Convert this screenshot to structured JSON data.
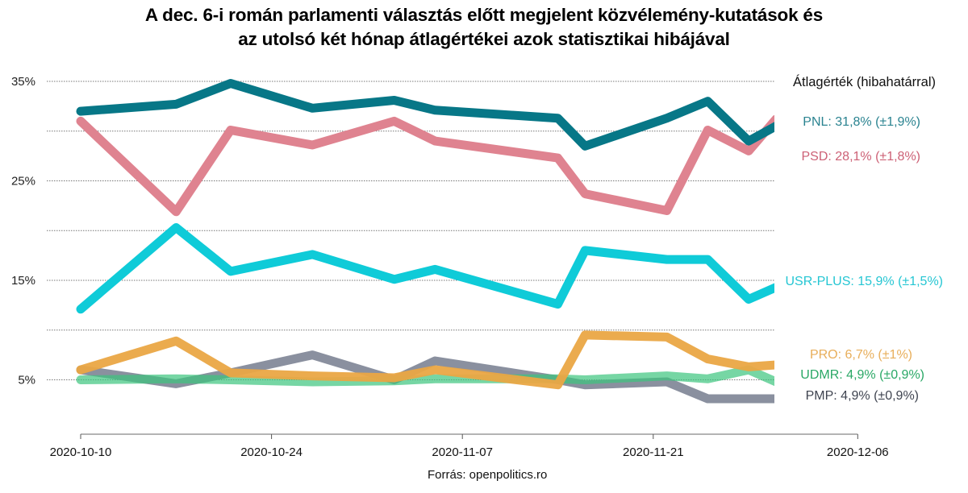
{
  "chart_data": {
    "type": "line",
    "title": [
      "A dec. 6-i román parlamenti választás előtt megjelent közvélemény-kutatások és",
      "az utolsó két hónap átlagértékei azok statisztikai hibájával"
    ],
    "xlabel": "",
    "ylabel": "",
    "source": "Forrás: openpolitics.ro",
    "x_ticks": [
      "2020-10-10",
      "2020-10-24",
      "2020-11-07",
      "2020-11-21",
      "2020-12-06"
    ],
    "x_range": [
      "2020-10-10",
      "2020-12-06"
    ],
    "y_ticks": [
      {
        "value": 35,
        "label": "35%"
      },
      {
        "value": 30,
        "label": ""
      },
      {
        "value": 25,
        "label": "25%"
      },
      {
        "value": 20,
        "label": ""
      },
      {
        "value": 15,
        "label": "15%"
      },
      {
        "value": 10,
        "label": ""
      },
      {
        "value": 5,
        "label": "5%"
      }
    ],
    "ylim": [
      0,
      36.5
    ],
    "grid": "horizontal-dotted",
    "legend_title": "Átlagérték (hibahatárral)",
    "legend_placement": "right",
    "x": [
      "2020-10-10",
      "2020-10-17",
      "2020-10-21",
      "2020-10-27",
      "2020-11-02",
      "2020-11-05",
      "2020-11-14",
      "2020-11-16",
      "2020-11-22",
      "2020-11-25",
      "2020-11-28",
      "2020-11-30"
    ],
    "series": [
      {
        "name": "PMP",
        "color": "#8a909f",
        "opacity": 1.0,
        "label": "PMP: 4,9% (±0,9%)",
        "label_color": "#3f4450",
        "values": [
          6.0,
          4.6,
          5.7,
          7.5,
          5.0,
          6.9,
          5.0,
          4.5,
          4.8,
          3.1,
          3.1,
          3.1
        ]
      },
      {
        "name": "UDMR",
        "color": "#3cc47e",
        "opacity": 0.7,
        "label": "UDMR: 4,9% (±0,9%)",
        "label_color": "#2aa866",
        "values": [
          5.0,
          5.1,
          5.0,
          4.8,
          4.9,
          5.1,
          5.1,
          5.0,
          5.4,
          5.1,
          6.0,
          4.8
        ]
      },
      {
        "name": "PRO",
        "color": "#eaa744",
        "opacity": 0.95,
        "label": "PRO: 6,7% (±1%)",
        "label_color": "#e8ae5a",
        "values": [
          6.0,
          8.9,
          5.7,
          5.4,
          5.2,
          6.0,
          4.5,
          9.5,
          9.3,
          7.1,
          6.3,
          6.5
        ]
      },
      {
        "name": "USR-PLUS",
        "color": "#0fcbd8",
        "opacity": 1.0,
        "label": "USR-PLUS: 15,9% (±1,5%)",
        "label_color": "#25c6d3",
        "values": [
          12.1,
          20.3,
          15.9,
          17.6,
          15.1,
          16.1,
          12.6,
          18.0,
          17.1,
          17.1,
          13.1,
          14.3
        ]
      },
      {
        "name": "PSD",
        "color": "#df8390",
        "opacity": 1.0,
        "label": "PSD: 28,1% (±1,8%)",
        "label_color": "#cd6176",
        "values": [
          31.0,
          21.9,
          30.1,
          28.6,
          31.0,
          29.0,
          27.3,
          23.7,
          22.0,
          30.1,
          28.0,
          31.2
        ]
      },
      {
        "name": "PNL",
        "color": "#077787",
        "opacity": 1.0,
        "label": "PNL: 31,8% (±1,9%)",
        "label_color": "#2a8390",
        "values": [
          32.0,
          32.7,
          34.8,
          32.3,
          33.1,
          32.1,
          31.3,
          28.5,
          31.3,
          33.0,
          29.0,
          30.5
        ]
      }
    ],
    "averages": [
      {
        "name": "PNL",
        "mean": 31.8,
        "margin": 1.9
      },
      {
        "name": "PSD",
        "mean": 28.1,
        "margin": 1.8
      },
      {
        "name": "USR-PLUS",
        "mean": 15.9,
        "margin": 1.5
      },
      {
        "name": "PRO",
        "mean": 6.7,
        "margin": 1.0
      },
      {
        "name": "UDMR",
        "mean": 4.9,
        "margin": 0.9
      },
      {
        "name": "PMP",
        "mean": 4.9,
        "margin": 0.9
      }
    ]
  }
}
